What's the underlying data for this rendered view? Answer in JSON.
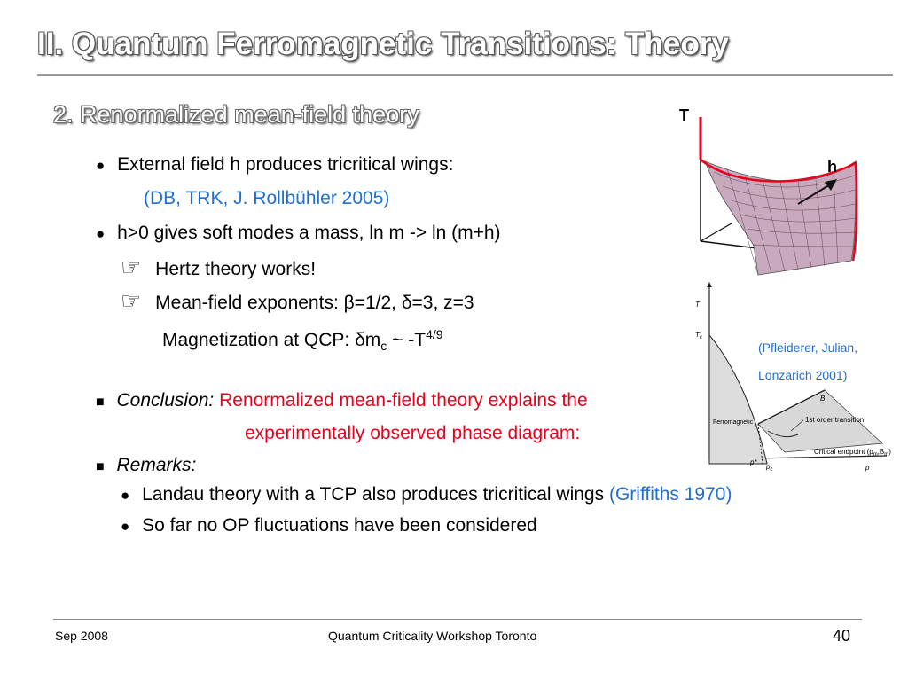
{
  "slide": {
    "title": "II. Quantum Ferromagnetic Transitions: Theory",
    "subtitle": "2. Renormalized mean-field theory"
  },
  "bullets": {
    "b1_text": "External field h produces tricritical wings:",
    "b1_ref": "(DB, TRK, J. Rollbühler 2005)",
    "b2_text": "h>0 gives soft modes a mass,  ln m -> ln (m+h)",
    "b2a_text": "Hertz theory works!",
    "b2b_text": "Mean-field exponents: β=1/2, δ=3, z=3",
    "mag_prefix": "Magnetization at QCP: δm",
    "mag_sub": "c",
    "mag_mid": " ~ -T",
    "mag_sup": "4/9",
    "conclusion_label": "Conclusion:",
    "conclusion_text_1": "Renormalized mean-field theory explains the",
    "conclusion_text_2": "experimentally observed phase diagram:",
    "remarks_label": "Remarks:",
    "r1_text": "Landau theory with a TCP also produces tricritical wings ",
    "r1_ref": "(Griffiths 1970)",
    "r2_text": "So far no OP fluctuations have been considered"
  },
  "symbols": {
    "bullet": "●",
    "square": "■",
    "hand_icon": "☞"
  },
  "figure_top": {
    "axis_T": "T",
    "axis_h": "h"
  },
  "figure_bottom": {
    "reference_1": "(Pfleiderer, Julian,",
    "reference_2": "Lonzarich 2001)",
    "label_T": "T",
    "label_Tc": "T",
    "label_Tc_sub": "c",
    "label_B": "B",
    "label_ferro": "Ferromagnetic",
    "label_first_order": "1st order transition",
    "label_cep": "Critical endpoint (p",
    "label_cep_sub1": "m",
    "label_cep_mid": ",B",
    "label_cep_sub2": "m",
    "label_cep_end": ")",
    "label_pstar": "p*",
    "label_pc": "p",
    "label_pc_sub": "c",
    "label_p": "p"
  },
  "footer": {
    "date": "Sep 2008",
    "event": "Quantum Criticality Workshop Toronto",
    "page": "40"
  },
  "colors": {
    "accent_red": "#e8001c",
    "accent_blue": "#1f6fd1",
    "surface": "#c9a9bd"
  }
}
